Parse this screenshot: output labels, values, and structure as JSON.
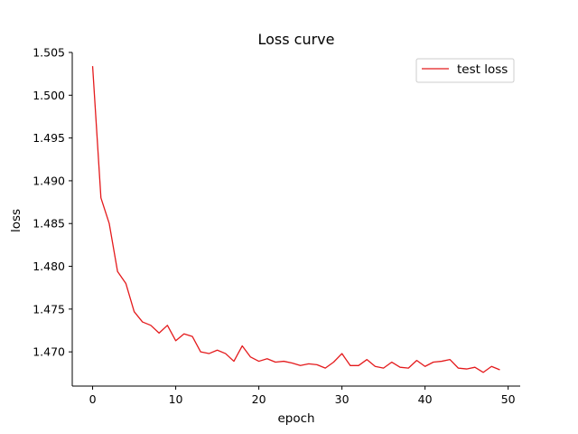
{
  "chart_data": {
    "type": "line",
    "title": "Loss curve",
    "xlabel": "epoch",
    "ylabel": "loss",
    "xlim": [
      -2.45,
      51.45
    ],
    "ylim": [
      1.466,
      1.505
    ],
    "xticks": [
      0,
      10,
      20,
      30,
      40,
      50
    ],
    "yticks": [
      1.47,
      1.475,
      1.48,
      1.485,
      1.49,
      1.495,
      1.5,
      1.505
    ],
    "ytick_labels": [
      "1.470",
      "1.475",
      "1.480",
      "1.485",
      "1.490",
      "1.495",
      "1.500",
      "1.505"
    ],
    "grid": false,
    "legend_position": "top-right",
    "series": [
      {
        "name": "test loss",
        "color": "#e41a1c",
        "x": [
          0,
          1,
          2,
          3,
          4,
          5,
          6,
          7,
          8,
          9,
          10,
          11,
          12,
          13,
          14,
          15,
          16,
          17,
          18,
          19,
          20,
          21,
          22,
          23,
          24,
          25,
          26,
          27,
          28,
          29,
          30,
          31,
          32,
          33,
          34,
          35,
          36,
          37,
          38,
          39,
          40,
          41,
          42,
          43,
          44,
          45,
          46,
          47,
          48,
          49
        ],
        "values": [
          1.5034,
          1.488,
          1.485,
          1.4794,
          1.478,
          1.4747,
          1.4735,
          1.4731,
          1.4722,
          1.4731,
          1.4713,
          1.4721,
          1.4718,
          1.47,
          1.4698,
          1.4702,
          1.4698,
          1.4689,
          1.4707,
          1.4694,
          1.4689,
          1.4692,
          1.4688,
          1.4689,
          1.4687,
          1.4684,
          1.4686,
          1.4685,
          1.4681,
          1.4688,
          1.4698,
          1.4684,
          1.4684,
          1.4691,
          1.4683,
          1.4681,
          1.4688,
          1.4682,
          1.4681,
          1.469,
          1.4683,
          1.4688,
          1.4689,
          1.4691,
          1.4681,
          1.468,
          1.4682,
          1.4676,
          1.4683,
          1.4679
        ]
      }
    ]
  }
}
